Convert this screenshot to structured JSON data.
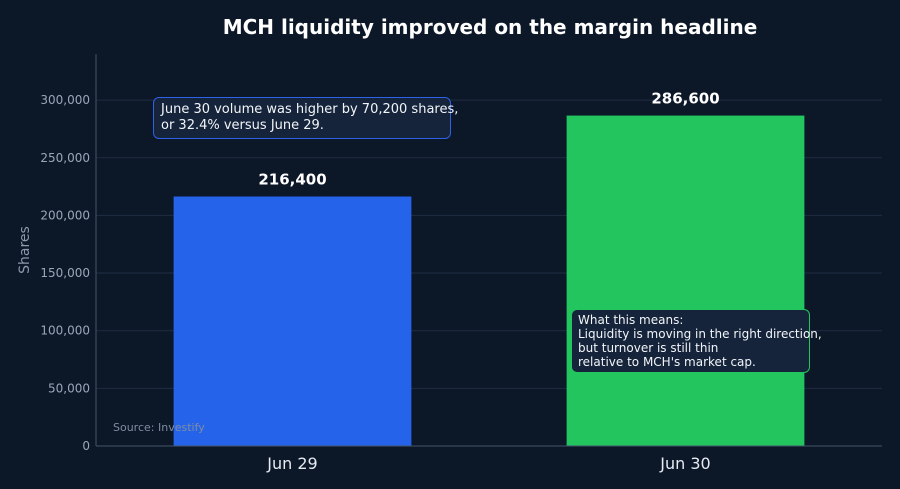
{
  "chart_data": {
    "type": "bar",
    "title": "MCH liquidity improved on the margin headline",
    "ylabel": "Shares",
    "xlabel": "",
    "categories": [
      "Jun 29",
      "Jun 30"
    ],
    "values": [
      216400,
      286600
    ],
    "data_labels": [
      "216,400",
      "286,600"
    ],
    "bar_colors": [
      "#2563eb",
      "#22c55e"
    ],
    "ylim": [
      0,
      340000
    ],
    "yticks": [
      0,
      50000,
      100000,
      150000,
      200000,
      250000,
      300000
    ],
    "ytick_labels": [
      "0",
      "50,000",
      "100,000",
      "150,000",
      "200,000",
      "250,000",
      "300,000"
    ],
    "grid": true,
    "source": "Source: Investify",
    "annotations": [
      {
        "lines": [
          "June 30 volume was higher by 70,200 shares,",
          "or 32.4% versus June 29."
        ],
        "border_color": "#2563eb"
      },
      {
        "lines": [
          "What this means:",
          "Liquidity is moving in the right direction,",
          "but turnover is still thin",
          "relative to MCH's market cap."
        ],
        "border_color": "#22c55e"
      }
    ]
  }
}
